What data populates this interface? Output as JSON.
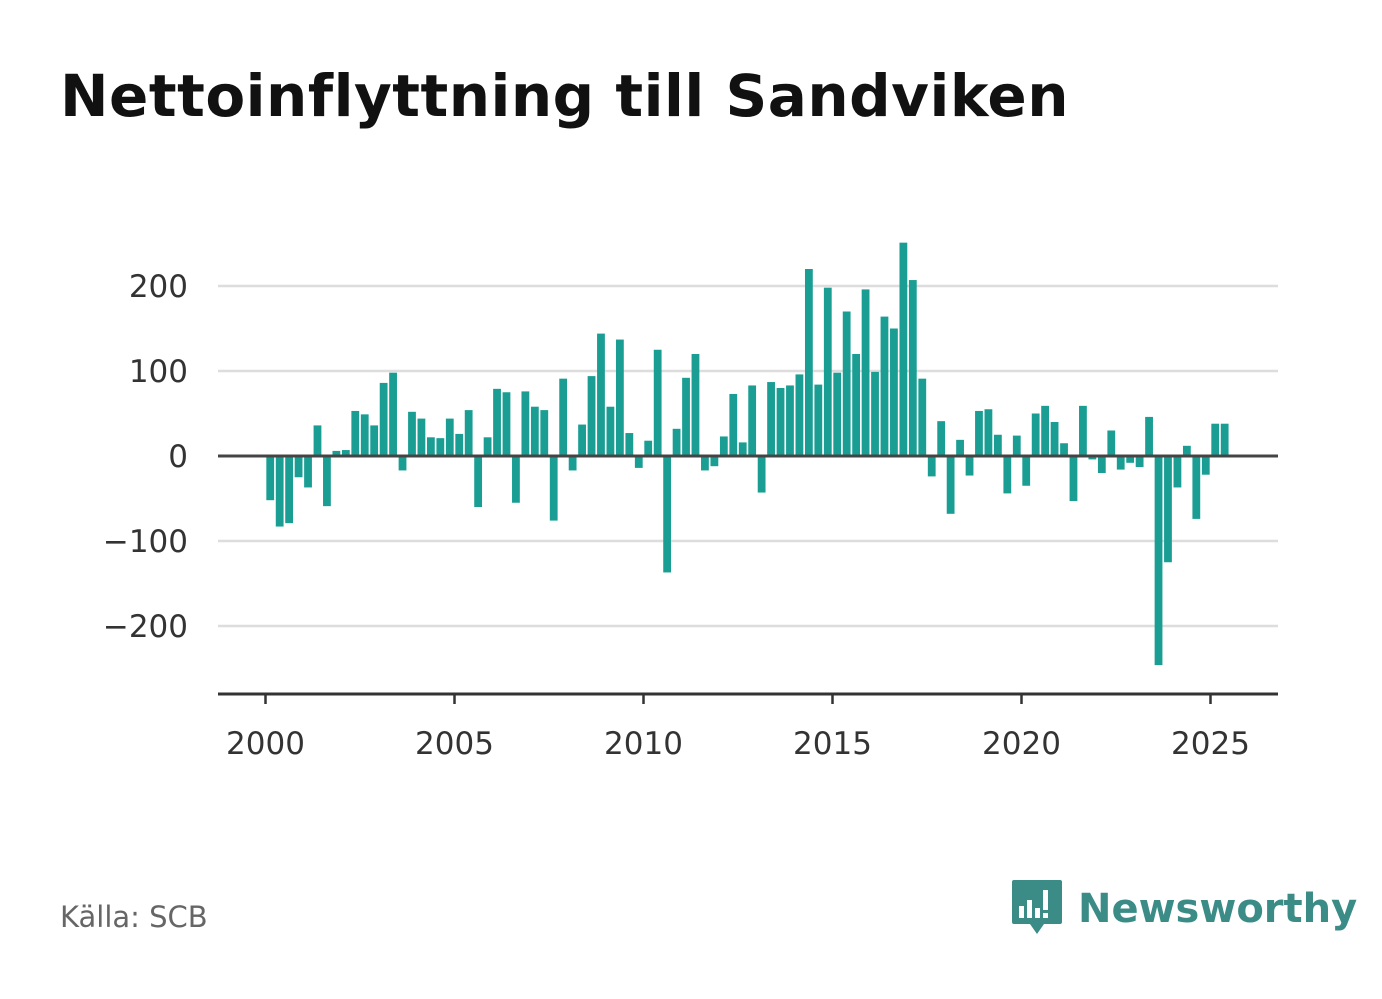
{
  "title": "Nettoinflyttning till Sandviken",
  "source": "Källa: SCB",
  "logo": {
    "text": "Newsworthy",
    "icon": "chart-speech-bubble-icon",
    "color": "#3b8c86"
  },
  "colors": {
    "bar": "#1a9e94",
    "grid": "#dddddd",
    "zero_line": "#444444",
    "axis": "#333333"
  },
  "chart_data": {
    "type": "bar",
    "title": "Nettoinflyttning till Sandviken",
    "xlabel": "",
    "ylabel": "",
    "ylim": [
      -280,
      250
    ],
    "xlim": [
      1999.3,
      2027.0
    ],
    "yticks": [
      200,
      100,
      0,
      -100,
      -200
    ],
    "ytick_labels": [
      "200",
      "100",
      "0",
      "−100",
      "−200"
    ],
    "xticks": [
      2000,
      2005,
      2010,
      2015,
      2020,
      2025
    ],
    "xtick_labels": [
      "2000",
      "2005",
      "2010",
      "2015",
      "2020",
      "2025"
    ],
    "grid": true,
    "legend": "none",
    "series": [
      {
        "x": [
          2000.125,
          2000.375,
          2000.625,
          2000.875,
          2001.125,
          2001.375,
          2001.625,
          2001.875,
          2002.125,
          2002.375,
          2002.625,
          2002.875,
          2003.125,
          2003.375,
          2003.625,
          2003.875,
          2004.125,
          2004.375,
          2004.625,
          2004.875,
          2005.125,
          2005.375,
          2005.625,
          2005.875,
          2006.125,
          2006.375,
          2006.625,
          2006.875,
          2007.125,
          2007.375,
          2007.625,
          2007.875,
          2008.125,
          2008.375,
          2008.625,
          2008.875,
          2009.125,
          2009.375,
          2009.625,
          2009.875,
          2010.125,
          2010.375,
          2010.625,
          2010.875,
          2011.125,
          2011.375,
          2011.625,
          2011.875,
          2012.125,
          2012.375,
          2012.625,
          2012.875,
          2013.125,
          2013.375,
          2013.625,
          2013.875,
          2014.125,
          2014.375,
          2014.625,
          2014.875,
          2015.125,
          2015.375,
          2015.625,
          2015.875,
          2016.125,
          2016.375,
          2016.625,
          2016.875,
          2017.125,
          2017.375,
          2017.625,
          2017.875,
          2018.125,
          2018.375,
          2018.625,
          2018.875,
          2019.125,
          2019.375,
          2019.625,
          2019.875,
          2020.125,
          2020.375,
          2020.625,
          2020.875,
          2021.125,
          2021.375,
          2021.625,
          2021.875,
          2022.125,
          2022.375,
          2022.625,
          2022.875,
          2023.125,
          2023.375,
          2023.625,
          2023.875,
          2024.125,
          2024.375,
          2024.625,
          2024.875,
          2025.125,
          2025.375
        ],
        "values": [
          -52,
          -83,
          -79,
          -25,
          -37,
          36,
          -59,
          6,
          7,
          53,
          49,
          36,
          86,
          98,
          -17,
          52,
          44,
          22,
          21,
          44,
          26,
          54,
          -60,
          22,
          79,
          75,
          -55,
          76,
          58,
          54,
          -76,
          91,
          -17,
          37,
          94,
          144,
          58,
          137,
          27,
          -14,
          18,
          125,
          -137,
          32,
          92,
          120,
          -17,
          -12,
          23,
          73,
          16,
          83,
          -43,
          87,
          80,
          83,
          96,
          220,
          84,
          198,
          98,
          170,
          120,
          196,
          99,
          164,
          150,
          251,
          207,
          91,
          -24,
          41,
          -68,
          19,
          -23,
          53,
          55,
          25,
          -44,
          24,
          -35,
          50,
          59,
          40,
          15,
          -53,
          59,
          -4,
          -20,
          30,
          -16,
          -8,
          -13,
          46,
          -246,
          -125,
          -37,
          12,
          -74,
          -22,
          38,
          38
        ]
      }
    ]
  }
}
